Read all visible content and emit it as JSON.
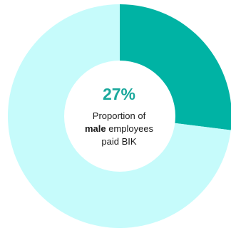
{
  "chart_data": {
    "type": "pie",
    "variant": "donut",
    "slices": [
      {
        "label": "male employees paid BIK",
        "value": 27,
        "color": "#00b3a4"
      },
      {
        "label": "",
        "value": 73,
        "color": "#c6fbfb"
      }
    ],
    "center": {
      "value_text": "27%",
      "caption_line1": "Proportion of",
      "caption_bold": "male",
      "caption_line2_rest": " employees",
      "caption_line3": "paid BIK"
    }
  },
  "colors": {
    "highlight": "#00b3a4",
    "remainder": "#c6fbfb",
    "center_fill": "#ffffff",
    "percent_text": "#1aa89c"
  }
}
